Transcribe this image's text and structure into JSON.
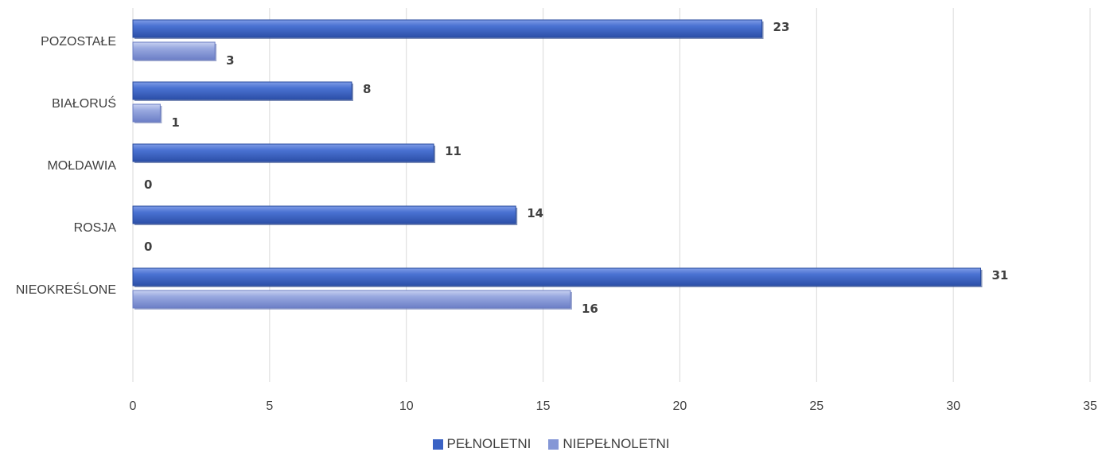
{
  "chart_data": {
    "type": "bar",
    "orientation": "horizontal",
    "categories": [
      "NIEOKREŚLONE",
      "ROSJA",
      "MOŁDAWIA",
      "BIAŁORUŚ",
      "POZOSTAŁE"
    ],
    "series": [
      {
        "name": "PEŁNOLETNI",
        "values": [
          31,
          14,
          11,
          8,
          23
        ],
        "color": "#3a62c4"
      },
      {
        "name": "NIEPEŁNOLETNI",
        "values": [
          16,
          0,
          0,
          1,
          3
        ],
        "color": "#8597d6"
      }
    ],
    "xlim": [
      0,
      35
    ],
    "xticks": [
      0,
      5,
      10,
      15,
      20,
      25,
      30,
      35
    ],
    "grid": true,
    "legend_position": "bottom",
    "title": "",
    "xlabel": "",
    "ylabel": ""
  }
}
